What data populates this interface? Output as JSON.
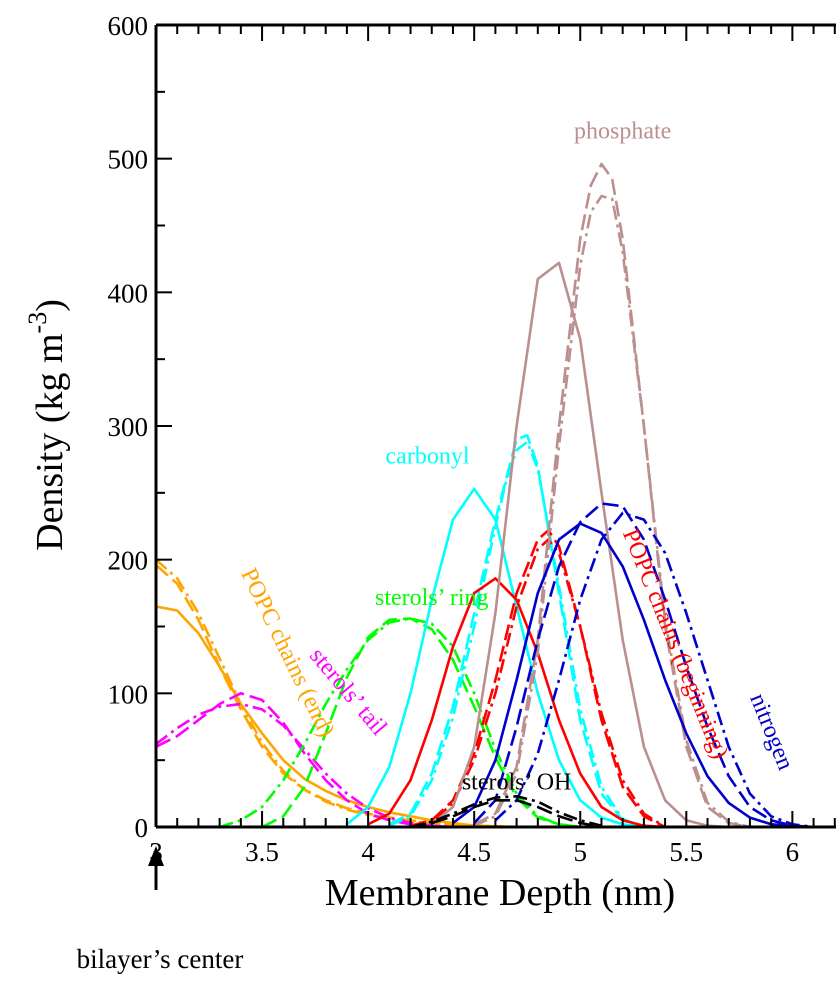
{
  "chart_data": {
    "type": "line",
    "xlabel": "Membrane Depth (nm)",
    "ylabel": {
      "main": "Density (kg m",
      "sup": "-3",
      "close": ")"
    },
    "xlim": [
      3,
      6.3
    ],
    "ylim": [
      0,
      600
    ],
    "xticks": [
      {
        "value": 3,
        "label": "3"
      },
      {
        "value": 3.5,
        "label": "3.5"
      },
      {
        "value": 4,
        "label": "4"
      },
      {
        "value": 4.5,
        "label": "4.5"
      },
      {
        "value": 5,
        "label": "5"
      },
      {
        "value": 5.5,
        "label": "5.5"
      },
      {
        "value": 6,
        "label": "6"
      }
    ],
    "yticks": [
      {
        "value": 0,
        "label": "0"
      },
      {
        "value": 100,
        "label": "100"
      },
      {
        "value": 200,
        "label": "200"
      },
      {
        "value": 300,
        "label": "300"
      },
      {
        "value": 400,
        "label": "400"
      },
      {
        "value": 500,
        "label": "500"
      },
      {
        "value": 600,
        "label": "600"
      }
    ],
    "grid": false,
    "center_marker": {
      "x": 3,
      "label": "bilayer’s center"
    },
    "annotations": [
      {
        "text": "phosphate",
        "x": 5.2,
        "y": 515,
        "color": "#bc8f8f",
        "rotate": 0
      },
      {
        "text": "carbonyl",
        "x": 4.28,
        "y": 272,
        "color": "#00ffff",
        "rotate": 0
      },
      {
        "text": "sterols’ ring",
        "x": 4.3,
        "y": 166,
        "color": "#00ff00",
        "rotate": 0
      },
      {
        "text": "sterols’ OH",
        "x": 4.7,
        "y": 28,
        "color": "#000000",
        "rotate": 0
      },
      {
        "text": "POPC chains (end)",
        "x": 3.4,
        "y": 190,
        "color": "#ffa500",
        "rotate": 64
      },
      {
        "text": "sterols’ tail",
        "x": 3.72,
        "y": 128,
        "color": "#ff00ff",
        "rotate": 50
      },
      {
        "text": "POPC chains (beginning)",
        "x": 5.2,
        "y": 220,
        "color": "#ff0000",
        "rotate": 68
      },
      {
        "text": "nitrogen",
        "x": 5.8,
        "y": 97,
        "color": "#0000cd",
        "rotate": 68
      }
    ],
    "series": [
      {
        "group": "POPC chains (end)",
        "color": "#ffa500",
        "dash": "solid",
        "x": [
          3,
          3.1,
          3.2,
          3.3,
          3.4,
          3.5,
          3.6,
          3.7,
          3.8,
          3.9,
          4,
          4.1,
          4.2,
          4.3,
          4.4,
          4.5,
          4.7
        ],
        "y": [
          165,
          162,
          145,
          120,
          92,
          70,
          50,
          36,
          27,
          20,
          15,
          11,
          8,
          5,
          3,
          1,
          0
        ]
      },
      {
        "group": "POPC chains (end)",
        "color": "#ffa500",
        "dash": "dash",
        "x": [
          3,
          3.1,
          3.2,
          3.3,
          3.4,
          3.5,
          3.6,
          3.7,
          3.8,
          3.9,
          4,
          4.1,
          4.2,
          4.3,
          4.4,
          4.5,
          4.7
        ],
        "y": [
          196,
          182,
          155,
          120,
          88,
          60,
          40,
          28,
          20,
          14,
          10,
          7,
          5,
          3,
          2,
          1,
          0
        ]
      },
      {
        "group": "POPC chains (end)",
        "color": "#ffa500",
        "dash": "dashdot",
        "x": [
          3,
          3.1,
          3.2,
          3.3,
          3.4,
          3.5,
          3.6,
          3.7,
          3.8,
          3.9,
          4,
          4.1,
          4.2,
          4.3,
          4.4,
          4.5,
          4.7
        ],
        "y": [
          200,
          186,
          160,
          126,
          92,
          63,
          42,
          28,
          19,
          13,
          9,
          6,
          4,
          3,
          2,
          1,
          0
        ]
      },
      {
        "group": "sterols’ tail",
        "color": "#ff00ff",
        "dash": "dash",
        "x": [
          3,
          3.1,
          3.2,
          3.3,
          3.4,
          3.5,
          3.6,
          3.7,
          3.8,
          3.9,
          4,
          4.1,
          4.2,
          4.3,
          4.4,
          4.5
        ],
        "y": [
          60,
          68,
          80,
          92,
          100,
          95,
          78,
          55,
          35,
          20,
          10,
          5,
          2,
          1,
          0,
          0
        ]
      },
      {
        "group": "sterols’ tail",
        "color": "#ff00ff",
        "dash": "dashdot",
        "x": [
          3,
          3.1,
          3.2,
          3.3,
          3.4,
          3.5,
          3.6,
          3.7,
          3.8,
          3.9,
          4,
          4.1,
          4.2,
          4.3,
          4.4,
          4.5
        ],
        "y": [
          62,
          74,
          84,
          90,
          92,
          88,
          76,
          58,
          40,
          25,
          14,
          7,
          3,
          1,
          0,
          0
        ]
      },
      {
        "group": "sterols’ ring",
        "color": "#00ff00",
        "dash": "dash",
        "x": [
          3.5,
          3.6,
          3.7,
          3.8,
          3.9,
          4,
          4.1,
          4.2,
          4.3,
          4.4,
          4.5,
          4.6,
          4.7,
          4.8,
          4.9,
          5
        ],
        "y": [
          0,
          8,
          30,
          70,
          112,
          142,
          155,
          156,
          148,
          125,
          90,
          52,
          22,
          7,
          2,
          0
        ]
      },
      {
        "group": "sterols’ ring",
        "color": "#00ff00",
        "dash": "dashdot",
        "x": [
          3.3,
          3.4,
          3.5,
          3.6,
          3.7,
          3.8,
          3.9,
          4,
          4.1,
          4.2,
          4.3,
          4.4,
          4.5,
          4.6,
          4.7,
          4.8,
          4.9,
          5
        ],
        "y": [
          0,
          5,
          15,
          35,
          62,
          92,
          118,
          140,
          153,
          156,
          152,
          135,
          100,
          58,
          25,
          8,
          2,
          0
        ]
      },
      {
        "group": "carbonyl",
        "color": "#00ffff",
        "dash": "solid",
        "x": [
          3.9,
          4,
          4.1,
          4.2,
          4.3,
          4.4,
          4.5,
          4.6,
          4.7,
          4.8,
          4.9,
          5,
          5.1,
          5.2,
          5.3
        ],
        "y": [
          2,
          15,
          45,
          100,
          170,
          230,
          253,
          230,
          165,
          100,
          50,
          20,
          7,
          2,
          0
        ]
      },
      {
        "group": "carbonyl",
        "color": "#00ffff",
        "dash": "dash",
        "x": [
          4.1,
          4.2,
          4.3,
          4.4,
          4.5,
          4.6,
          4.65,
          4.7,
          4.75,
          4.8,
          4.9,
          5,
          5.1,
          5.2,
          5.3
        ],
        "y": [
          2,
          10,
          40,
          90,
          160,
          230,
          260,
          290,
          293,
          270,
          175,
          80,
          25,
          5,
          0
        ]
      },
      {
        "group": "carbonyl",
        "color": "#00ffff",
        "dash": "dashdot",
        "x": [
          4.1,
          4.2,
          4.3,
          4.4,
          4.5,
          4.6,
          4.65,
          4.7,
          4.75,
          4.8,
          4.9,
          5,
          5.1,
          5.2,
          5.3
        ],
        "y": [
          1,
          8,
          35,
          82,
          150,
          225,
          258,
          282,
          288,
          268,
          180,
          88,
          30,
          6,
          0
        ]
      },
      {
        "group": "POPC chains (beginning)",
        "color": "#ff0000",
        "dash": "solid",
        "x": [
          4,
          4.1,
          4.2,
          4.3,
          4.4,
          4.5,
          4.6,
          4.7,
          4.8,
          4.9,
          5,
          5.1,
          5.2,
          5.3,
          5.4
        ],
        "y": [
          2,
          10,
          35,
          80,
          135,
          175,
          186,
          170,
          130,
          80,
          40,
          15,
          5,
          1,
          0
        ]
      },
      {
        "group": "POPC chains (beginning)",
        "color": "#ff0000",
        "dash": "dash",
        "x": [
          4.2,
          4.3,
          4.4,
          4.5,
          4.6,
          4.7,
          4.8,
          4.85,
          4.9,
          5,
          5.1,
          5.2,
          5.3,
          5.4
        ],
        "y": [
          1,
          5,
          20,
          55,
          110,
          175,
          215,
          222,
          210,
          150,
          80,
          30,
          8,
          0
        ]
      },
      {
        "group": "POPC chains (beginning)",
        "color": "#ff0000",
        "dash": "dashdot",
        "x": [
          4.2,
          4.3,
          4.4,
          4.5,
          4.6,
          4.7,
          4.8,
          4.85,
          4.9,
          5,
          5.1,
          5.2,
          5.3,
          5.4
        ],
        "y": [
          1,
          4,
          18,
          50,
          100,
          165,
          208,
          215,
          205,
          150,
          85,
          35,
          10,
          0
        ]
      },
      {
        "group": "phosphate",
        "color": "#bc8f8f",
        "dash": "solid",
        "x": [
          4.3,
          4.4,
          4.5,
          4.6,
          4.7,
          4.8,
          4.9,
          5,
          5.1,
          5.2,
          5.3,
          5.4,
          5.5,
          5.6,
          5.7
        ],
        "y": [
          2,
          15,
          60,
          160,
          300,
          410,
          422,
          365,
          250,
          140,
          60,
          20,
          5,
          1,
          0
        ]
      },
      {
        "group": "phosphate",
        "color": "#bc8f8f",
        "dash": "dash",
        "x": [
          4.5,
          4.6,
          4.7,
          4.8,
          4.9,
          5,
          5.05,
          5.1,
          5.15,
          5.2,
          5.3,
          5.4,
          5.5,
          5.6,
          5.7,
          5.8
        ],
        "y": [
          2,
          10,
          45,
          140,
          300,
          440,
          480,
          496,
          485,
          440,
          300,
          150,
          60,
          15,
          3,
          0
        ]
      },
      {
        "group": "phosphate",
        "color": "#bc8f8f",
        "dash": "dashdot",
        "x": [
          4.5,
          4.6,
          4.7,
          4.8,
          4.9,
          5,
          5.05,
          5.1,
          5.15,
          5.2,
          5.3,
          5.4,
          5.5,
          5.6,
          5.7,
          5.8
        ],
        "y": [
          1,
          8,
          40,
          130,
          285,
          420,
          460,
          472,
          470,
          430,
          300,
          155,
          65,
          18,
          4,
          0
        ]
      },
      {
        "group": "nitrogen",
        "color": "#0000cd",
        "dash": "solid",
        "x": [
          4.4,
          4.5,
          4.6,
          4.7,
          4.8,
          4.9,
          5,
          5.1,
          5.2,
          5.3,
          5.4,
          5.5,
          5.6,
          5.7,
          5.8,
          5.9,
          6,
          6.1
        ],
        "y": [
          3,
          15,
          50,
          110,
          175,
          215,
          227,
          220,
          195,
          155,
          110,
          70,
          38,
          18,
          7,
          2,
          1,
          0
        ]
      },
      {
        "group": "nitrogen",
        "color": "#0000cd",
        "dash": "dash",
        "x": [
          4.5,
          4.6,
          4.7,
          4.8,
          4.9,
          5,
          5.1,
          5.2,
          5.3,
          5.4,
          5.5,
          5.6,
          5.7,
          5.8,
          5.9,
          6,
          6.1
        ],
        "y": [
          3,
          20,
          75,
          140,
          195,
          228,
          242,
          240,
          215,
          170,
          120,
          75,
          38,
          15,
          5,
          1,
          0
        ]
      },
      {
        "group": "nitrogen",
        "color": "#0000cd",
        "dash": "dashdot",
        "x": [
          4.6,
          4.7,
          4.8,
          4.9,
          5,
          5.1,
          5.2,
          5.3,
          5.4,
          5.5,
          5.6,
          5.7,
          5.8,
          5.9,
          6,
          6.1,
          6.2
        ],
        "y": [
          5,
          20,
          55,
          110,
          170,
          215,
          235,
          230,
          205,
          160,
          110,
          60,
          25,
          8,
          2,
          0,
          0
        ]
      },
      {
        "group": "sterols’ OH",
        "color": "#000000",
        "dash": "dash",
        "x": [
          4.2,
          4.3,
          4.4,
          4.5,
          4.6,
          4.7,
          4.8,
          4.9,
          5,
          5.1
        ],
        "y": [
          0,
          3,
          8,
          15,
          20,
          20,
          15,
          8,
          3,
          0
        ]
      },
      {
        "group": "sterols’ OH",
        "color": "#000000",
        "dash": "dashdot",
        "x": [
          4.2,
          4.3,
          4.4,
          4.5,
          4.6,
          4.7,
          4.8,
          4.9,
          5,
          5.1
        ],
        "y": [
          0,
          4,
          10,
          17,
          22,
          23,
          19,
          11,
          5,
          1
        ]
      }
    ]
  }
}
